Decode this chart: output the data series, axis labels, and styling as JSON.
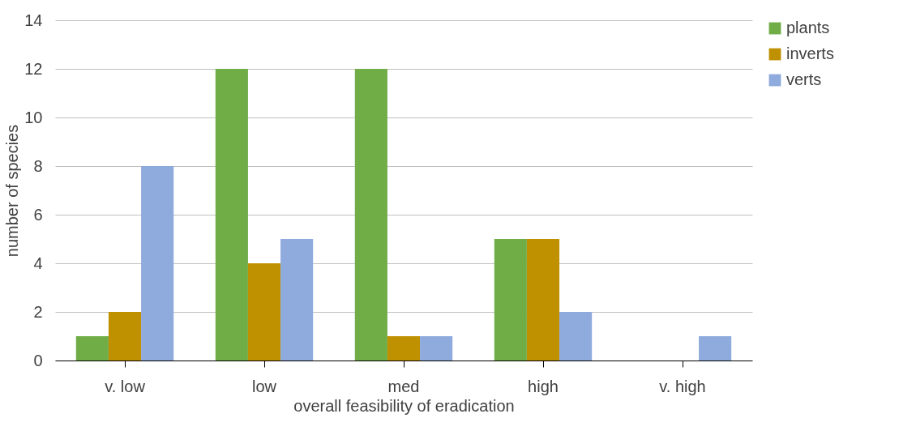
{
  "chart_data": {
    "type": "bar",
    "xlabel": "overall feasibility of eradication",
    "ylabel": "number of species",
    "categories": [
      "v. low",
      "low",
      "med",
      "high",
      "v. high"
    ],
    "series": [
      {
        "name": "plants",
        "color": "#70ad47",
        "values": [
          1,
          12,
          12,
          5,
          0
        ]
      },
      {
        "name": "inverts",
        "color": "#bf9000",
        "values": [
          2,
          4,
          1,
          5,
          0
        ]
      },
      {
        "name": "verts",
        "color": "#8faadc",
        "values": [
          8,
          5,
          1,
          2,
          1
        ]
      }
    ],
    "ylim": [
      0,
      14
    ],
    "yticks": [
      0,
      2,
      4,
      6,
      8,
      10,
      12,
      14
    ],
    "grid": "y",
    "legend": "right"
  }
}
